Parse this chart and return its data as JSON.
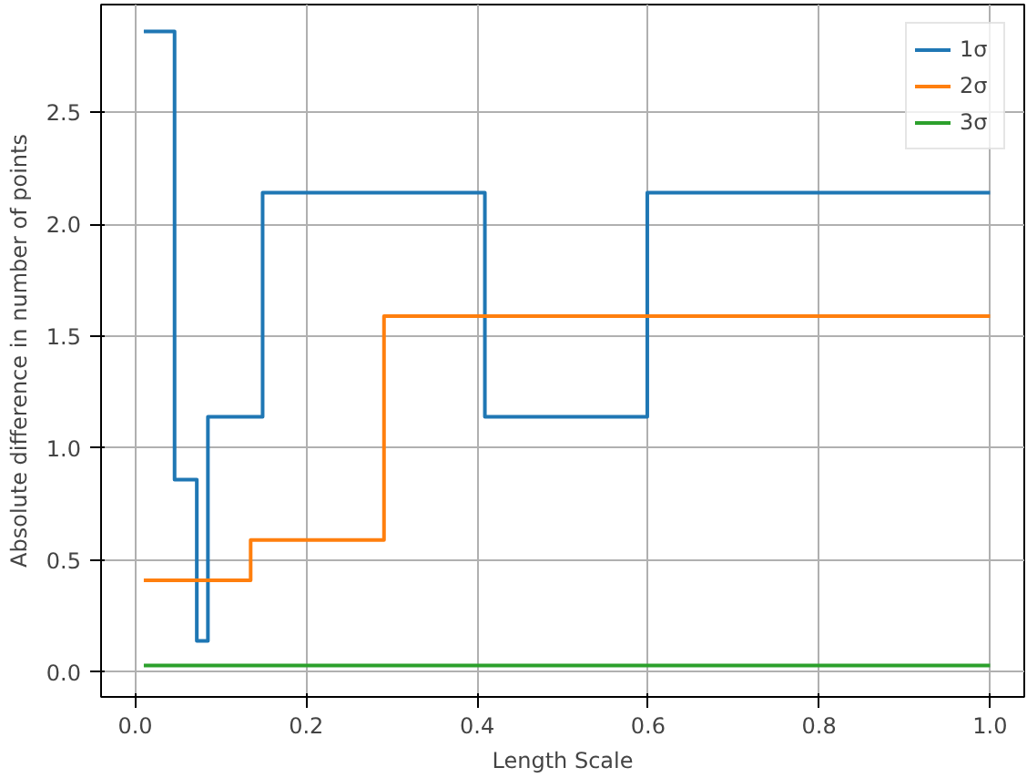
{
  "chart_data": {
    "type": "step",
    "xlabel": "Length Scale",
    "ylabel": "Absolute difference in number of points",
    "xlim": [
      -0.04,
      1.04
    ],
    "ylim": [
      -0.11,
      2.98
    ],
    "xticks": [
      {
        "value": 0,
        "label": "0.0"
      },
      {
        "value": 0.2,
        "label": "0.2"
      },
      {
        "value": 0.4,
        "label": "0.4"
      },
      {
        "value": 0.6,
        "label": "0.6"
      },
      {
        "value": 0.8,
        "label": "0.8"
      },
      {
        "value": 1,
        "label": "1.0"
      }
    ],
    "yticks": [
      {
        "value": 0,
        "label": "0.0"
      },
      {
        "value": 0.5,
        "label": "0.5"
      },
      {
        "value": 1,
        "label": "1.0"
      },
      {
        "value": 1.5,
        "label": "1.5"
      },
      {
        "value": 2,
        "label": "2.0"
      },
      {
        "value": 2.5,
        "label": "2.5"
      }
    ],
    "grid": true,
    "legend": "top right",
    "series": [
      {
        "name": "1σ",
        "color": "#1f77b4",
        "x": [
          0.01,
          0.046,
          0.072,
          0.085,
          0.149,
          0.409,
          0.599,
          1.0
        ],
        "values": [
          2.86,
          0.86,
          0.14,
          1.14,
          2.14,
          1.14,
          2.14,
          2.14
        ]
      },
      {
        "name": "2σ",
        "color": "#ff7f0e",
        "x": [
          0.01,
          0.135,
          0.291,
          1.0
        ],
        "values": [
          0.41,
          0.59,
          1.59,
          1.59
        ]
      },
      {
        "name": "3σ",
        "color": "#2ca02c",
        "x": [
          0.01,
          1.0
        ],
        "values": [
          0.03,
          0.03
        ]
      }
    ]
  }
}
